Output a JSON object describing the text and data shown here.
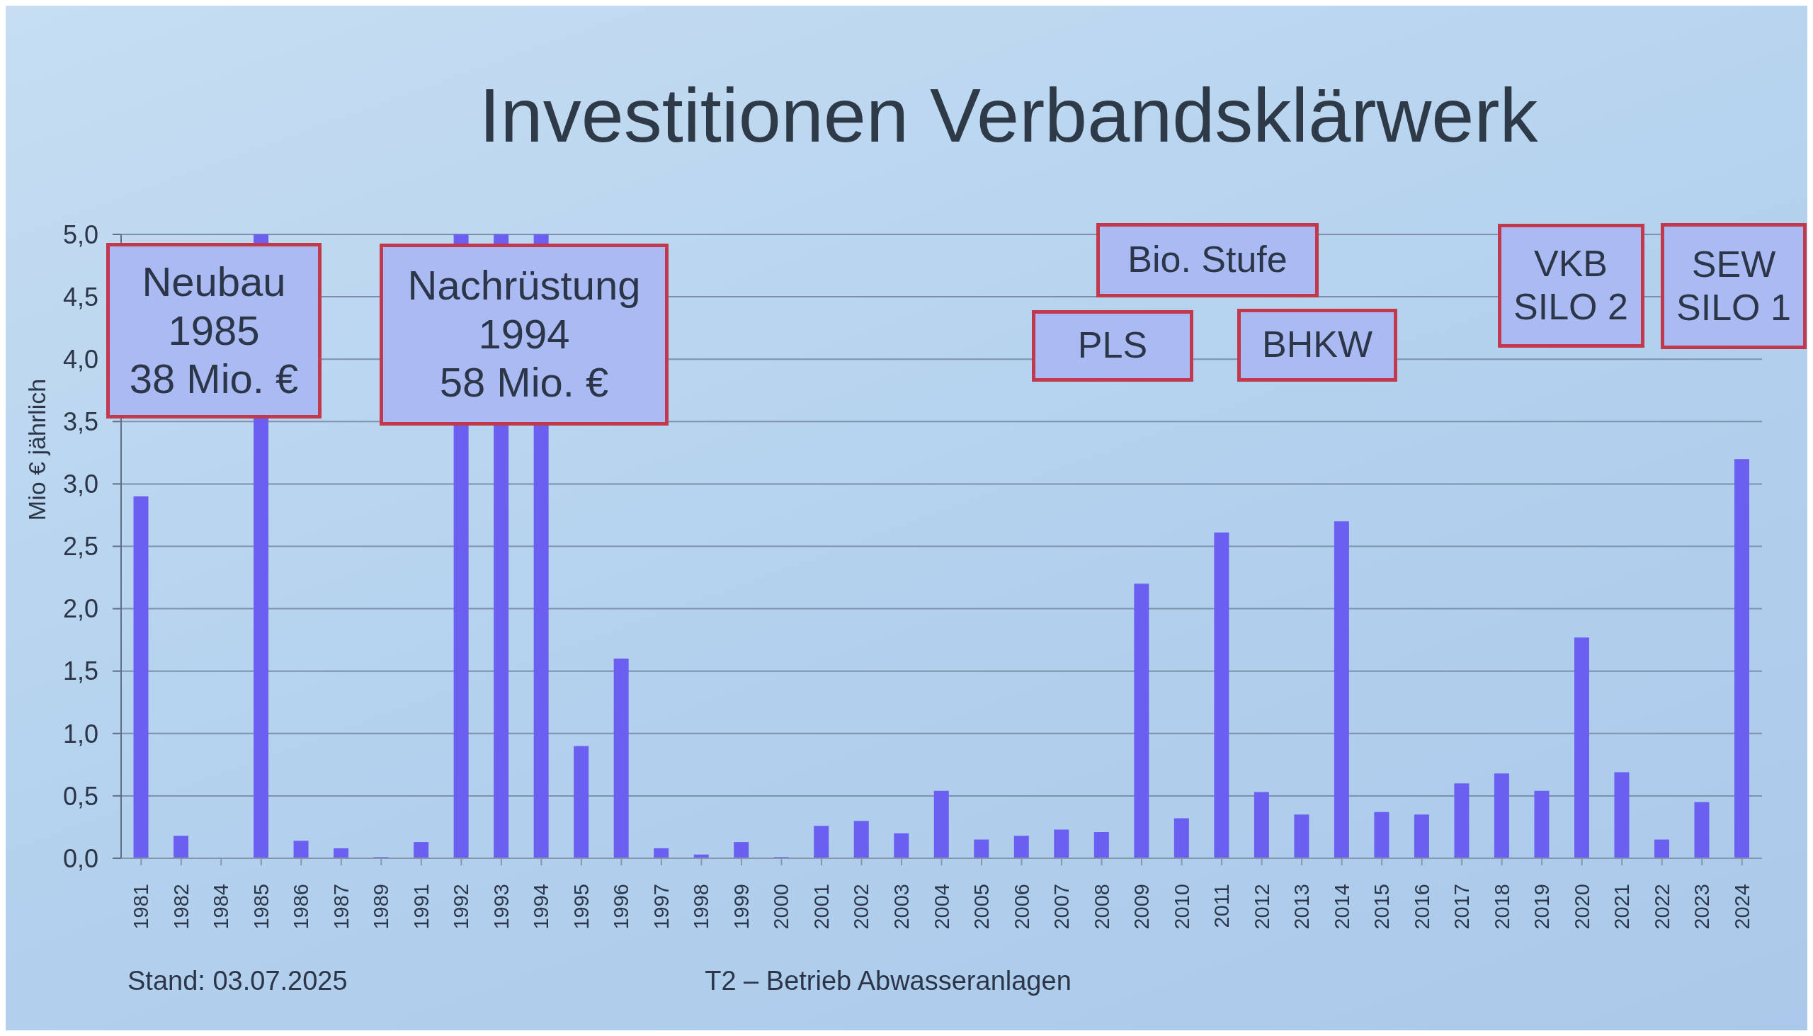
{
  "chart_data": {
    "type": "bar",
    "title": "Investitionen Verbandsklärwerk",
    "ylabel": "Mio € jährlich",
    "categories": [
      "1981",
      "1982",
      "1984",
      "1985",
      "1986",
      "1987",
      "1989",
      "1991",
      "1992",
      "1993",
      "1994",
      "1995",
      "1996",
      "1997",
      "1998",
      "1999",
      "2000",
      "2001",
      "2002",
      "2003",
      "2004",
      "2005",
      "2006",
      "2007",
      "2008",
      "2009",
      "2010",
      "2011",
      "2012",
      "2013",
      "2014",
      "2015",
      "2016",
      "2017",
      "2018",
      "2019",
      "2020",
      "2021",
      "2022",
      "2023",
      "2024"
    ],
    "values": [
      2.9,
      0.18,
      0,
      5,
      0.14,
      0.08,
      0.01,
      0.13,
      5,
      5,
      5,
      0.9,
      1.6,
      0.08,
      0.03,
      0.13,
      0.01,
      0.26,
      0.3,
      0.2,
      0.54,
      0.15,
      0.18,
      0.23,
      0.21,
      2.2,
      0.32,
      2.61,
      0.53,
      0.35,
      2.7,
      0.37,
      0.35,
      0.6,
      0.68,
      0.54,
      1.77,
      0.69,
      0.15,
      0.45,
      3.2
    ],
    "color": "#6b5ff2",
    "ylim": [
      0,
      5
    ],
    "yticks": [
      {
        "value": 0,
        "label": "0,0"
      },
      {
        "value": 0.5,
        "label": "0,5"
      },
      {
        "value": 1,
        "label": "1,0"
      },
      {
        "value": 1.5,
        "label": "1,5"
      },
      {
        "value": 2,
        "label": "2,0"
      },
      {
        "value": 2.5,
        "label": "2,5"
      },
      {
        "value": 3,
        "label": "3,0"
      },
      {
        "value": 3.5,
        "label": "3,5"
      },
      {
        "value": 4,
        "label": "4,0"
      },
      {
        "value": 4.5,
        "label": "4,5"
      },
      {
        "value": 5,
        "label": "5,0"
      }
    ],
    "grid": "y",
    "annotations": [
      "Neubau\n1985\n38 Mio. €",
      "Nachrüstung\n1994\n58 Mio. €",
      "Bio. Stufe",
      "PLS",
      "BHKW",
      "VKB\nSILO 2",
      "SEW\nSILO 1",
      "Stand: 03.07.2025",
      "T2 – Betrieb Abwasseranlagen"
    ]
  }
}
